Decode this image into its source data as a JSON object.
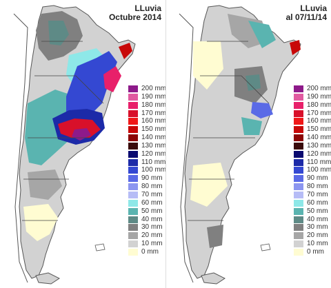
{
  "panels": [
    {
      "title_line1": "LLuvia",
      "title_line2": "Octubre 2014"
    },
    {
      "title_line1": "LLuvia",
      "title_line2": "al 07/11/14"
    }
  ],
  "legend": [
    {
      "label": "200 mm",
      "color": "#8e1a8a"
    },
    {
      "label": "190 mm",
      "color": "#e05aa0"
    },
    {
      "label": "180 mm",
      "color": "#e8206a"
    },
    {
      "label": "170 mm",
      "color": "#d8102a"
    },
    {
      "label": "160 mm",
      "color": "#f01818"
    },
    {
      "label": "150 mm",
      "color": "#c80808"
    },
    {
      "label": "140 mm",
      "color": "#8c0606"
    },
    {
      "label": "130 mm",
      "color": "#3a0b0b"
    },
    {
      "label": "120 mm",
      "color": "#0a0a70"
    },
    {
      "label": "110 mm",
      "color": "#1c2aa8"
    },
    {
      "label": "100 mm",
      "color": "#3448d2"
    },
    {
      "label": "90 mm",
      "color": "#5a6ae6"
    },
    {
      "label": "80 mm",
      "color": "#8c96f0"
    },
    {
      "label": "70 mm",
      "color": "#b6bcf6"
    },
    {
      "label": "60 mm",
      "color": "#8ee8e8"
    },
    {
      "label": "50 mm",
      "color": "#5ab4b0"
    },
    {
      "label": "40 mm",
      "color": "#5e8a86"
    },
    {
      "label": "30 mm",
      "color": "#808080"
    },
    {
      "label": "20 mm",
      "color": "#a6a6a6"
    },
    {
      "label": "10 mm",
      "color": "#d2d2d2"
    },
    {
      "label": "0 mm",
      "color": "#fffcd2"
    }
  ]
}
